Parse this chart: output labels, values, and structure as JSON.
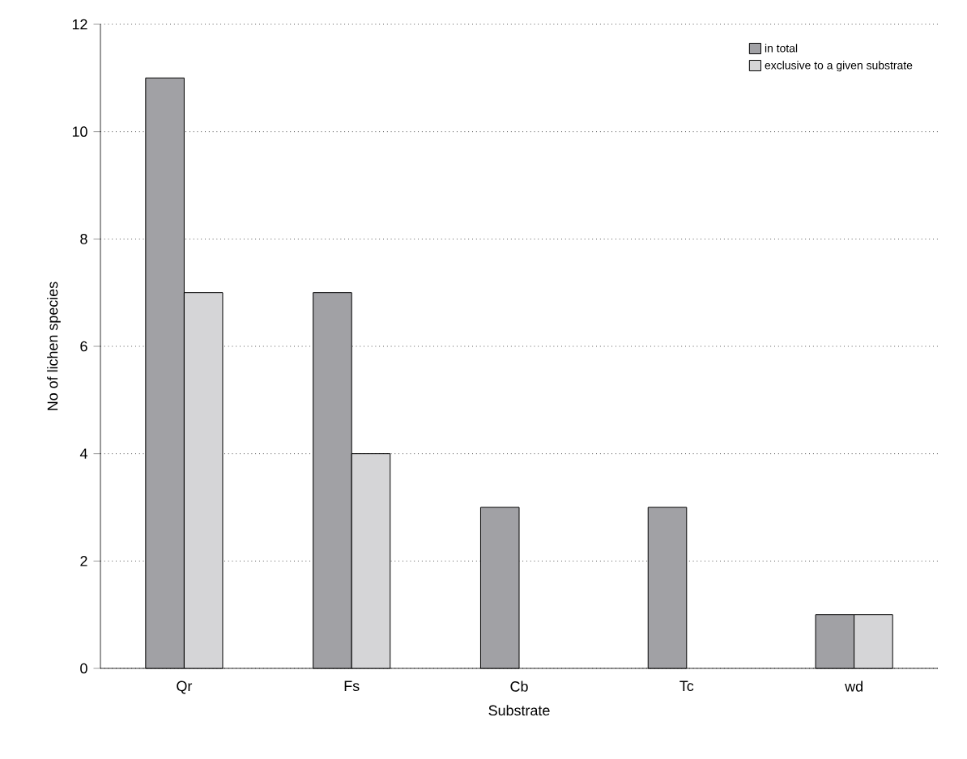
{
  "chart_data": {
    "type": "bar",
    "xlabel": "Substrate",
    "ylabel": "No of lichen species",
    "categories": [
      "Qr",
      "Fs",
      "Cb",
      "Tc",
      "wd"
    ],
    "series": [
      {
        "name": "in total",
        "color": "#a1a1a5",
        "values": [
          11,
          7,
          3,
          3,
          1
        ]
      },
      {
        "name": "exclusive to a given substrate",
        "color": "#d5d5d7",
        "values": [
          7,
          4,
          null,
          null,
          1
        ]
      }
    ],
    "ylim": [
      0,
      12
    ],
    "yticks": [
      0,
      2,
      4,
      6,
      8,
      10,
      12
    ],
    "grid": "y",
    "legend": "top right"
  }
}
